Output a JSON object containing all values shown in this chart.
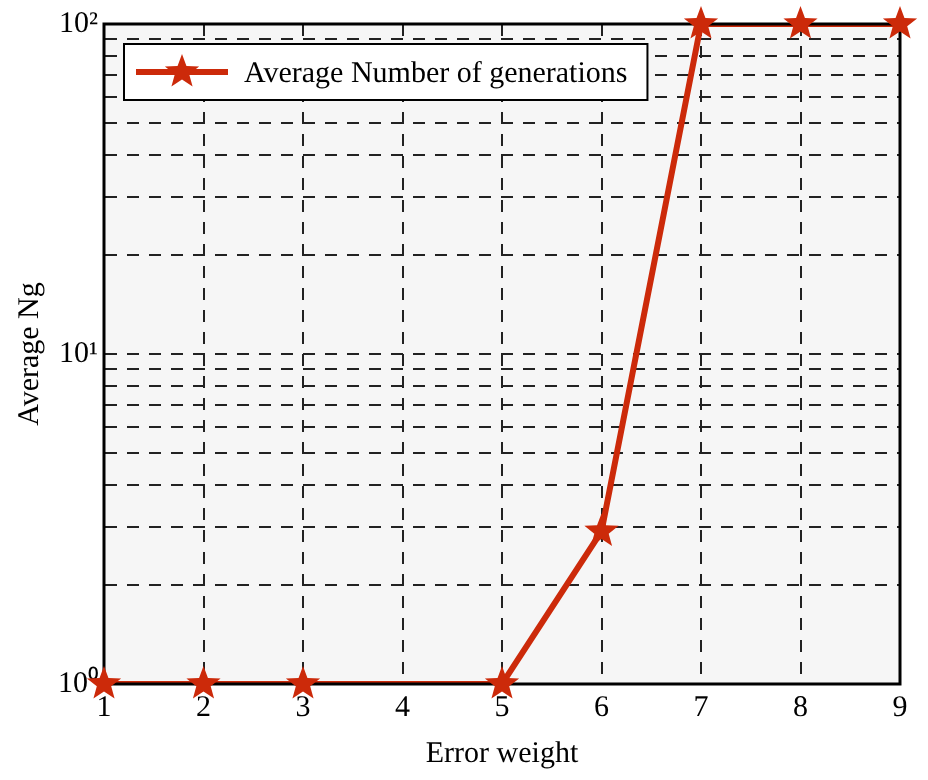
{
  "chart_data": {
    "type": "line",
    "xlabel": "Error weight",
    "ylabel": "Average Ng",
    "x": [
      1,
      2,
      3,
      5,
      6,
      7,
      8,
      9
    ],
    "series": [
      {
        "name": "Average Number of generations",
        "color": "#cc2a0a",
        "values": [
          1,
          1,
          1,
          1,
          2.9,
          100,
          100,
          100
        ]
      }
    ],
    "xlim": [
      1,
      9
    ],
    "xticks": [
      1,
      2,
      3,
      4,
      5,
      6,
      7,
      8,
      9
    ],
    "ylim": [
      1,
      100
    ],
    "yticks": [
      {
        "value": 1,
        "label": "10⁰"
      },
      {
        "value": 2,
        "label": null
      },
      {
        "value": 3,
        "label": null
      },
      {
        "value": 4,
        "label": null
      },
      {
        "value": 5,
        "label": null
      },
      {
        "value": 6,
        "label": null
      },
      {
        "value": 7,
        "label": null
      },
      {
        "value": 8,
        "label": null
      },
      {
        "value": 9,
        "label": null
      },
      {
        "value": 10,
        "label": "10¹"
      },
      {
        "value": 20,
        "label": null
      },
      {
        "value": 30,
        "label": null
      },
      {
        "value": 40,
        "label": null
      },
      {
        "value": 50,
        "label": null
      },
      {
        "value": 60,
        "label": null
      },
      {
        "value": 70,
        "label": null
      },
      {
        "value": 80,
        "label": null
      },
      {
        "value": 90,
        "label": null
      },
      {
        "value": 100,
        "label": "10²"
      }
    ],
    "log": "y",
    "grid": true,
    "legend": "top left",
    "marker": "star",
    "line_style": "solid"
  }
}
